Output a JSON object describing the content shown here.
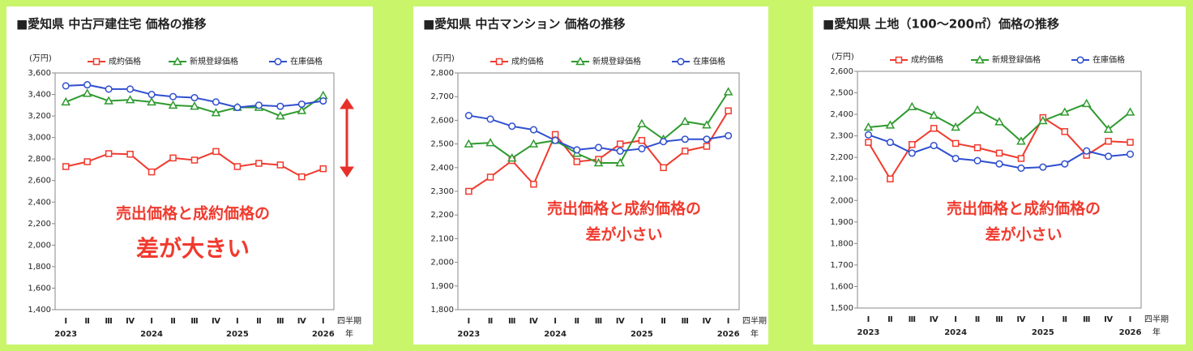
{
  "chart_data": [
    {
      "type": "line",
      "title": "■愛知県 中古戸建住宅 価格の推移",
      "y_unit": "(万円)",
      "x_unit": "四半期",
      "year_unit": "年",
      "categories": [
        "Ⅰ",
        "Ⅱ",
        "Ⅲ",
        "Ⅳ",
        "Ⅰ",
        "Ⅱ",
        "Ⅲ",
        "Ⅳ",
        "Ⅰ",
        "Ⅱ",
        "Ⅲ",
        "Ⅳ",
        "Ⅰ"
      ],
      "years": [
        "2023",
        null,
        null,
        null,
        "2024",
        null,
        null,
        null,
        "2025",
        null,
        null,
        null,
        "2026"
      ],
      "series": [
        {
          "name": "成約価格",
          "color": "#f03a2e",
          "marker": "square",
          "values": [
            2730,
            2775,
            2850,
            2845,
            2680,
            2810,
            2790,
            2870,
            2730,
            2760,
            2745,
            2635,
            2710
          ]
        },
        {
          "name": "新規登録価格",
          "color": "#2e9a2e",
          "marker": "triangle",
          "values": [
            3330,
            3410,
            3340,
            3350,
            3330,
            3300,
            3290,
            3230,
            3280,
            3280,
            3200,
            3250,
            3390
          ]
        },
        {
          "name": "在庫価格",
          "color": "#2f4fd0",
          "marker": "circle",
          "values": [
            3480,
            3490,
            3450,
            3450,
            3400,
            3380,
            3370,
            3330,
            3280,
            3300,
            3290,
            3310,
            3340
          ]
        }
      ],
      "ylim": [
        1400,
        3600
      ],
      "yticks": [
        {
          "value": 1400,
          "label": "1,400"
        },
        {
          "value": 1600,
          "label": "1,600"
        },
        {
          "value": 1800,
          "label": "1,800"
        },
        {
          "value": 2000,
          "label": "2,000"
        },
        {
          "value": 2200,
          "label": "2,200"
        },
        {
          "value": 2400,
          "label": "2,400"
        },
        {
          "value": 2600,
          "label": "2,600"
        },
        {
          "value": 2800,
          "label": "2,800"
        },
        {
          "value": 3000,
          "label": "3,000"
        },
        {
          "value": 3200,
          "label": "3,200"
        },
        {
          "value": 3400,
          "label": "3,400"
        },
        {
          "value": 3600,
          "label": "3,600"
        }
      ],
      "annotation": [
        "売出価格と成約価格の",
        "差が大きい"
      ]
    },
    {
      "type": "line",
      "title": "■愛知県 中古マンション 価格の推移",
      "y_unit": "(万円)",
      "x_unit": "四半期",
      "year_unit": "年",
      "categories": [
        "Ⅰ",
        "Ⅱ",
        "Ⅲ",
        "Ⅳ",
        "Ⅰ",
        "Ⅱ",
        "Ⅲ",
        "Ⅳ",
        "Ⅰ",
        "Ⅱ",
        "Ⅲ",
        "Ⅳ",
        "Ⅰ"
      ],
      "years": [
        "2023",
        null,
        null,
        null,
        "2024",
        null,
        null,
        null,
        "2025",
        null,
        null,
        null,
        "2026"
      ],
      "series": [
        {
          "name": "成約価格",
          "color": "#f03a2e",
          "marker": "square",
          "values": [
            2300,
            2360,
            2430,
            2330,
            2540,
            2425,
            2435,
            2500,
            2515,
            2400,
            2470,
            2490,
            2640
          ]
        },
        {
          "name": "新規登録価格",
          "color": "#2e9a2e",
          "marker": "triangle",
          "values": [
            2500,
            2505,
            2440,
            2500,
            2515,
            2460,
            2420,
            2420,
            2585,
            2520,
            2595,
            2580,
            2720
          ]
        },
        {
          "name": "在庫価格",
          "color": "#2f4fd0",
          "marker": "circle",
          "values": [
            2620,
            2605,
            2575,
            2560,
            2515,
            2475,
            2485,
            2470,
            2480,
            2510,
            2520,
            2520,
            2535
          ]
        }
      ],
      "ylim": [
        1800,
        2800
      ],
      "yticks": [
        {
          "value": 1800,
          "label": "1,800"
        },
        {
          "value": 1900,
          "label": "1,900"
        },
        {
          "value": 2000,
          "label": "2,000"
        },
        {
          "value": 2100,
          "label": "2,100"
        },
        {
          "value": 2200,
          "label": "2,200"
        },
        {
          "value": 2300,
          "label": "2,300"
        },
        {
          "value": 2400,
          "label": "2,400"
        },
        {
          "value": 2500,
          "label": "2,500"
        },
        {
          "value": 2600,
          "label": "2,600"
        },
        {
          "value": 2700,
          "label": "2,700"
        },
        {
          "value": 2800,
          "label": "2,800"
        }
      ],
      "annotation": [
        "売出価格と成約価格の",
        "差が小さい"
      ]
    },
    {
      "type": "line",
      "title": "■愛知県 土地（100～200㎡）価格の推移",
      "y_unit": "(万円)",
      "x_unit": "四半期",
      "year_unit": "年",
      "categories": [
        "Ⅰ",
        "Ⅱ",
        "Ⅲ",
        "Ⅳ",
        "Ⅰ",
        "Ⅱ",
        "Ⅲ",
        "Ⅳ",
        "Ⅰ",
        "Ⅱ",
        "Ⅲ",
        "Ⅳ",
        "Ⅰ"
      ],
      "years": [
        "2023",
        null,
        null,
        null,
        "2024",
        null,
        null,
        null,
        "2025",
        null,
        null,
        null,
        "2026"
      ],
      "series": [
        {
          "name": "成約価格",
          "color": "#f03a2e",
          "marker": "square",
          "values": [
            2270,
            2100,
            2260,
            2335,
            2265,
            2245,
            2220,
            2195,
            2385,
            2320,
            2210,
            2275,
            2270
          ]
        },
        {
          "name": "新規登録価格",
          "color": "#2e9a2e",
          "marker": "triangle",
          "values": [
            2340,
            2350,
            2435,
            2395,
            2340,
            2420,
            2365,
            2275,
            2370,
            2410,
            2450,
            2330,
            2410
          ]
        },
        {
          "name": "在庫価格",
          "color": "#2f4fd0",
          "marker": "circle",
          "values": [
            2305,
            2270,
            2220,
            2255,
            2195,
            2185,
            2170,
            2150,
            2155,
            2170,
            2230,
            2205,
            2215
          ]
        }
      ],
      "ylim": [
        1500,
        2600
      ],
      "yticks": [
        {
          "value": 1500,
          "label": "1,500"
        },
        {
          "value": 1600,
          "label": "1,600"
        },
        {
          "value": 1700,
          "label": "1,700"
        },
        {
          "value": 1800,
          "label": "1,800"
        },
        {
          "value": 1900,
          "label": "1,900"
        },
        {
          "value": 2000,
          "label": "2,000"
        },
        {
          "value": 2100,
          "label": "2,100"
        },
        {
          "value": 2200,
          "label": "2,200"
        },
        {
          "value": 2300,
          "label": "2,300"
        },
        {
          "value": 2400,
          "label": "2,400"
        },
        {
          "value": 2500,
          "label": "2,500"
        },
        {
          "value": 2600,
          "label": "2,600"
        }
      ],
      "annotation": [
        "売出価格と成約価格の",
        "差が小さい"
      ]
    }
  ]
}
